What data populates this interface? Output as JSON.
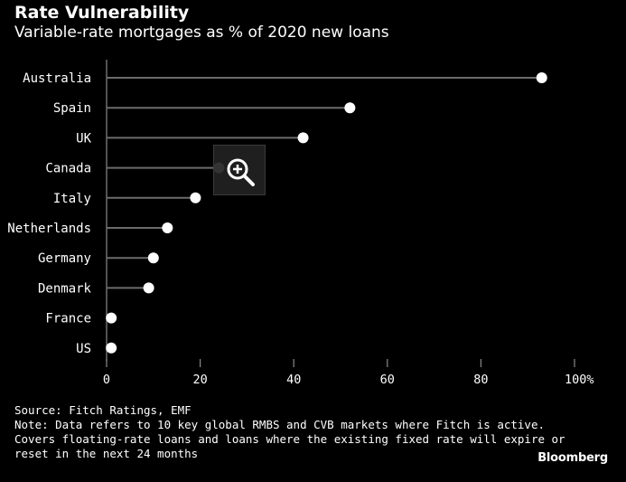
{
  "title": "Rate Vulnerability",
  "subtitle": "Variable-rate mortgages as % of 2020 new loans",
  "colors": {
    "background": "#000000",
    "text": "#ffffff",
    "stem": "#6b6b6b",
    "dot": "#ffffff"
  },
  "zoom": {
    "icon": "zoom-in-icon"
  },
  "chart_data": {
    "type": "lollipop",
    "categories": [
      "Australia",
      "Spain",
      "UK",
      "Canada",
      "Italy",
      "Netherlands",
      "Germany",
      "Denmark",
      "France",
      "US"
    ],
    "values": [
      93,
      52,
      42,
      24,
      19,
      13,
      10,
      9,
      1,
      1
    ],
    "xlim": [
      0,
      100
    ],
    "xticks": [
      0,
      20,
      40,
      60,
      80,
      100
    ],
    "xtick_labels": [
      "0",
      "20",
      "40",
      "60",
      "80",
      "100%"
    ],
    "grid": false
  },
  "footer": {
    "source": "Source: Fitch Ratings, EMF",
    "note_lines": [
      "Note: Data refers to 10 key global RMBS and CVB markets where Fitch is active.",
      "Covers floating-rate loans and loans where the existing fixed rate will expire or",
      "reset in the next 24 months"
    ]
  },
  "brand": "Bloomberg"
}
